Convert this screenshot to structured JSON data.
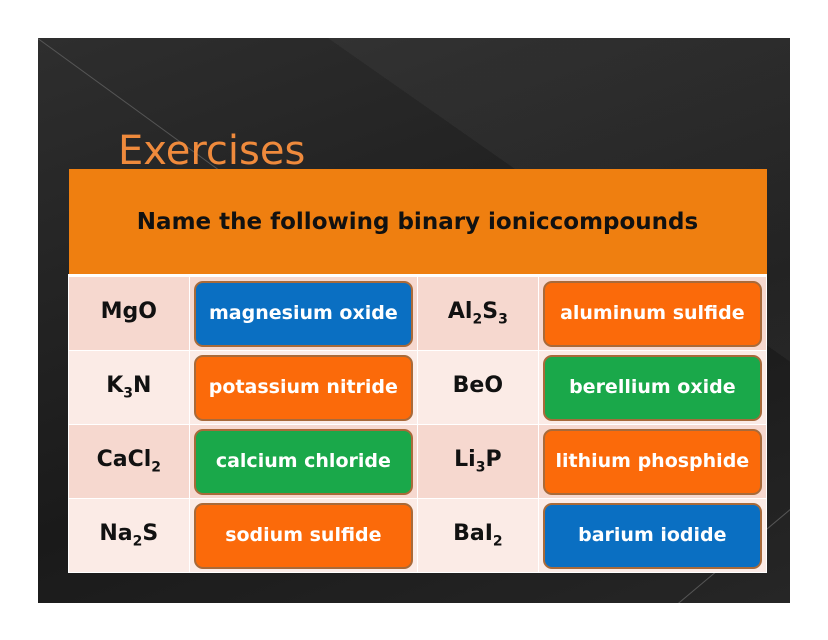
{
  "title": "Exercises",
  "table": {
    "header": "Name the following binary ioniccompounds",
    "rows": [
      [
        {
          "f": "Mg",
          "s1": "",
          "g": "O",
          "s2": "",
          "answer": "magnesium oxide",
          "color": "#0a6fc2"
        },
        {
          "f": "Al",
          "s1": "2",
          "g": "S",
          "s2": "3",
          "answer": "aluminum sulfide",
          "color": "#fb6a0a"
        }
      ],
      [
        {
          "f": "K",
          "s1": "3",
          "g": "N",
          "s2": "",
          "answer": "potassium nitride",
          "color": "#fb6a0a"
        },
        {
          "f": "Be",
          "s1": "",
          "g": "O",
          "s2": "",
          "answer": "berellium oxide",
          "color": "#1aa84a"
        }
      ],
      [
        {
          "f": "CaCl",
          "s1": "2",
          "g": "",
          "s2": "",
          "answer": "calcium chloride",
          "color": "#1aa84a"
        },
        {
          "f": "Li",
          "s1": "3",
          "g": "P",
          "s2": "",
          "answer": "lithium phosphide",
          "color": "#fb6a0a"
        }
      ],
      [
        {
          "f": "Na",
          "s1": "2",
          "g": "S",
          "s2": "",
          "answer": "sodium sulfide",
          "color": "#fb6a0a"
        },
        {
          "f": "BaI",
          "s1": "2",
          "g": "",
          "s2": "",
          "answer": "barium iodide",
          "color": "#0a6fc2"
        }
      ]
    ]
  }
}
